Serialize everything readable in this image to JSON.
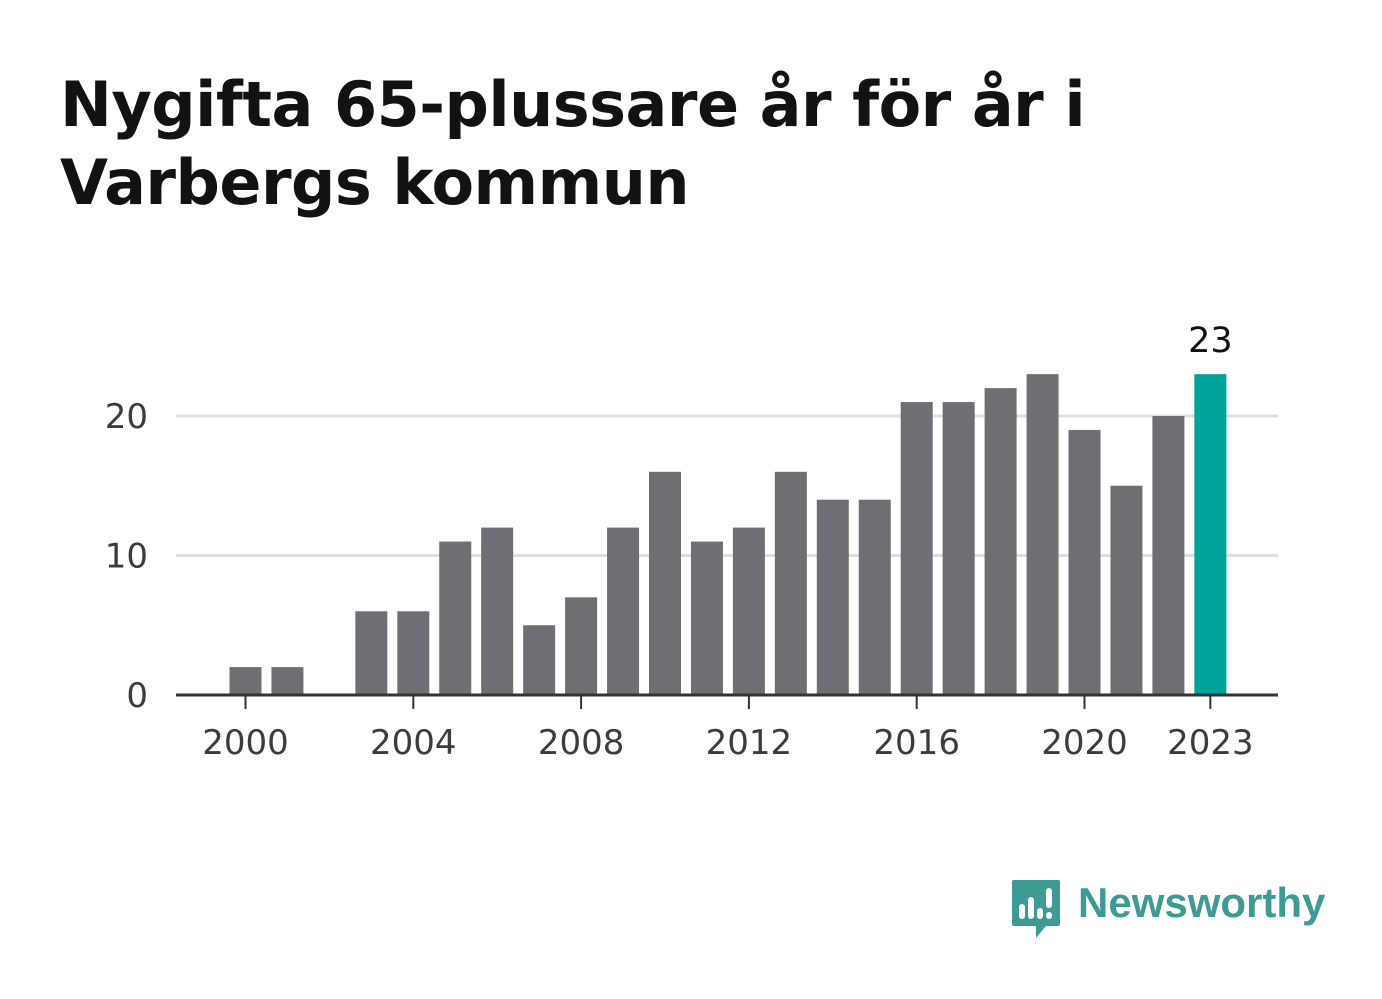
{
  "title": "Nygifta 65-plussare år för år i Varbergs kommun",
  "brand": {
    "name": "Newsworthy",
    "icon": "newsworthy-bar-chart-bubble-icon",
    "color": "#3e9b94"
  },
  "colors": {
    "bar": "#6f6e74",
    "highlight": "#00a399",
    "grid": "#dedede",
    "axis": "#333333"
  },
  "chart_data": {
    "type": "bar",
    "title": "Nygifta 65-plussare år för år i Varbergs kommun",
    "xlabel": "",
    "ylabel": "",
    "categories": [
      "2000",
      "2001",
      "2002",
      "2003",
      "2004",
      "2005",
      "2006",
      "2007",
      "2008",
      "2009",
      "2010",
      "2011",
      "2012",
      "2013",
      "2014",
      "2015",
      "2016",
      "2017",
      "2018",
      "2019",
      "2020",
      "2021",
      "2022",
      "2023"
    ],
    "values": [
      2,
      2,
      0,
      6,
      6,
      11,
      12,
      5,
      7,
      12,
      16,
      11,
      12,
      16,
      14,
      14,
      21,
      21,
      22,
      23,
      19,
      15,
      20,
      23
    ],
    "highlight_category": "2023",
    "highlight_label": "23",
    "ylim": [
      0,
      23
    ],
    "yticks": [
      0,
      10,
      20
    ],
    "xticks": [
      "2000",
      "2004",
      "2008",
      "2012",
      "2016",
      "2020",
      "2023"
    ],
    "grid": "horizontal",
    "legend": "none"
  }
}
